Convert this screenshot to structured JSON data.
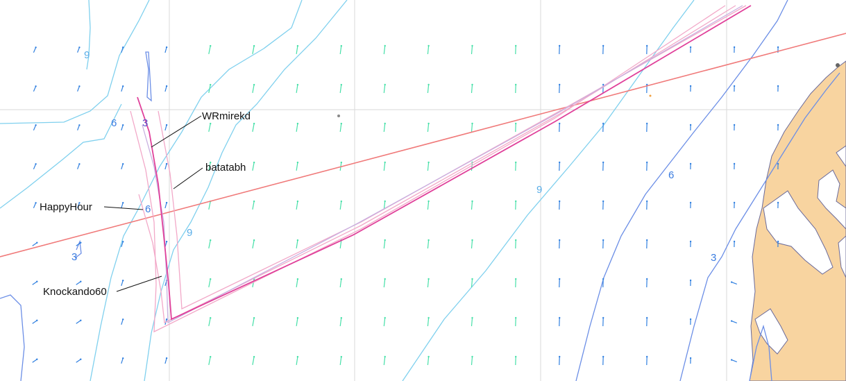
{
  "map": {
    "boat_labels": [
      {
        "name": "WRmirekd"
      },
      {
        "name": "batatabh"
      },
      {
        "name": "HappyHour"
      },
      {
        "name": "Knockando60"
      }
    ],
    "depth_labels": [
      "9",
      "6",
      "3",
      "6",
      "3",
      "9",
      "9",
      "6",
      "3"
    ],
    "colors": {
      "land": "#f8d4a0",
      "land_outline": "#6a6a9a",
      "sea": "#ffffff",
      "contour_shallow": "#6b8ee6",
      "contour_deep": "#7fd0ee",
      "grid": "#d8d8d8",
      "wind_arrow_light": "#2f7fe0",
      "wind_arrow_strong": "#46e0a8",
      "rhumb_line": "#f07a7a",
      "track_primary": "#e0409a",
      "track_secondary": "#f2a8c8",
      "track_tertiary": "#c8b0e0",
      "callout": "#111111"
    },
    "icons": [
      "wind-arrow-icon"
    ]
  }
}
